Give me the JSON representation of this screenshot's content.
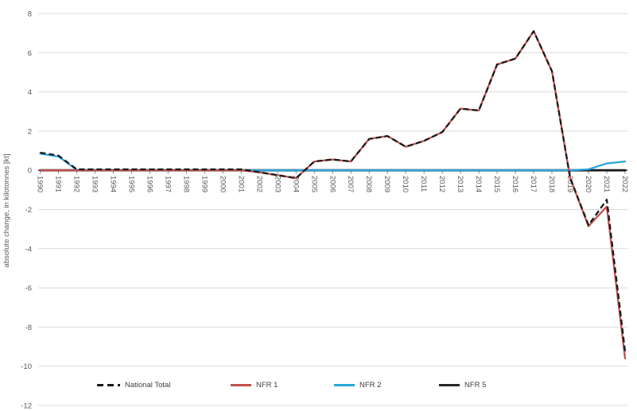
{
  "chart_data": {
    "type": "line",
    "title": "",
    "xlabel": "",
    "ylabel": "absolute change, in kilotonnes [kt]",
    "ylim": [
      -12,
      8
    ],
    "ytick_step": 2,
    "grid": true,
    "legend_position": "bottom",
    "x": [
      1990,
      1991,
      1992,
      1993,
      1994,
      1995,
      1996,
      1997,
      1998,
      1999,
      2000,
      2001,
      2002,
      2003,
      2004,
      2005,
      2006,
      2007,
      2008,
      2009,
      2010,
      2011,
      2012,
      2013,
      2014,
      2015,
      2016,
      2017,
      2018,
      2019,
      2020,
      2021,
      2022
    ],
    "series": [
      {
        "name": "National Total",
        "color": "#1a1a1a",
        "style": "dashed",
        "values": [
          0.9,
          0.75,
          0.05,
          0.05,
          0.05,
          0.05,
          0.05,
          0.05,
          0.05,
          0.05,
          0.05,
          0.05,
          -0.1,
          -0.25,
          -0.4,
          0.45,
          0.55,
          0.45,
          1.6,
          1.75,
          1.2,
          1.5,
          1.95,
          3.15,
          3.05,
          5.4,
          5.7,
          7.1,
          5.05,
          -0.4,
          -2.8,
          -1.5,
          -9.25
        ]
      },
      {
        "name": "NFR 1",
        "color": "#c0504d",
        "style": "solid",
        "values": [
          0,
          0,
          0,
          0,
          0,
          0,
          0,
          0,
          0,
          0,
          0,
          0,
          -0.1,
          -0.25,
          -0.4,
          0.45,
          0.55,
          0.45,
          1.6,
          1.75,
          1.2,
          1.5,
          1.95,
          3.15,
          3.05,
          5.4,
          5.7,
          7.1,
          5.05,
          -0.4,
          -2.85,
          -1.85,
          -9.6
        ]
      },
      {
        "name": "NFR 2",
        "color": "#29a5dc",
        "style": "solid",
        "values": [
          0.85,
          0.7,
          0.03,
          0,
          0,
          0,
          0,
          0,
          0,
          0,
          0,
          0,
          0,
          0,
          0,
          0,
          0,
          0,
          0,
          0,
          0,
          0,
          0,
          0,
          0,
          0,
          0,
          0,
          0,
          0,
          0.05,
          0.35,
          0.45
        ]
      },
      {
        "name": "NFR 5",
        "color": "#1a1a1a",
        "style": "solid",
        "values": [
          0,
          0,
          0,
          0,
          0,
          0,
          0,
          0,
          0,
          0,
          0,
          0,
          0,
          0,
          0,
          0,
          0,
          0,
          0,
          0,
          0,
          0,
          0,
          0,
          0,
          0,
          0,
          0,
          0,
          0,
          0,
          0,
          0
        ]
      }
    ],
    "axis_colors": {
      "gridline": "#d9d9d9",
      "axis_line": "#000000",
      "tick": "#898989",
      "label": "#595959"
    }
  }
}
